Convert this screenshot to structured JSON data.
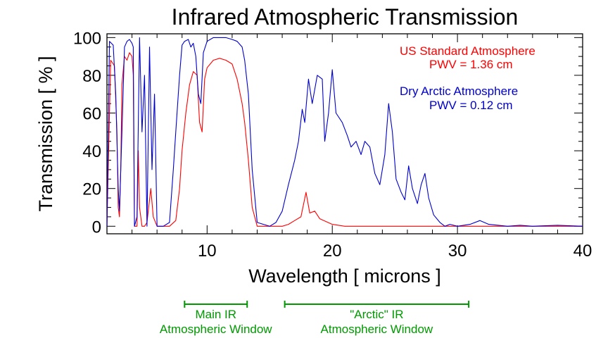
{
  "chart_data": {
    "type": "line",
    "title": "Infrared Atmospheric Transmission",
    "xlabel": "Wavelength [ microns ]",
    "ylabel": "Transmission [ % ]",
    "xlim": [
      2,
      40
    ],
    "ylim": [
      -4,
      102
    ],
    "xticks": [
      10,
      20,
      30,
      40
    ],
    "yticks": [
      0,
      20,
      40,
      60,
      80,
      100
    ],
    "grid": false,
    "legend_position": "top-right",
    "series": [
      {
        "name": "US Standard Atmosphere",
        "subtitle": "PWV = 1.36 cm",
        "color": "#ff0000",
        "points": [
          [
            2.0,
            0
          ],
          [
            2.3,
            88
          ],
          [
            2.6,
            85
          ],
          [
            2.8,
            50
          ],
          [
            2.9,
            10
          ],
          [
            3.0,
            5
          ],
          [
            3.1,
            30
          ],
          [
            3.2,
            75
          ],
          [
            3.4,
            90
          ],
          [
            3.6,
            88
          ],
          [
            3.8,
            92
          ],
          [
            4.0,
            90
          ],
          [
            4.1,
            80
          ],
          [
            4.2,
            0
          ],
          [
            4.4,
            0
          ],
          [
            4.5,
            40
          ],
          [
            4.6,
            10
          ],
          [
            4.8,
            0
          ],
          [
            5.0,
            0
          ],
          [
            5.2,
            2
          ],
          [
            5.5,
            20
          ],
          [
            5.7,
            5
          ],
          [
            6.0,
            0
          ],
          [
            7.0,
            0
          ],
          [
            7.5,
            3
          ],
          [
            7.8,
            20
          ],
          [
            8.0,
            40
          ],
          [
            8.3,
            60
          ],
          [
            8.6,
            75
          ],
          [
            8.9,
            82
          ],
          [
            9.2,
            80
          ],
          [
            9.4,
            55
          ],
          [
            9.6,
            50
          ],
          [
            9.8,
            78
          ],
          [
            10.0,
            84
          ],
          [
            10.5,
            88
          ],
          [
            11.0,
            89
          ],
          [
            11.5,
            88
          ],
          [
            12.0,
            86
          ],
          [
            12.4,
            78
          ],
          [
            12.8,
            65
          ],
          [
            13.0,
            55
          ],
          [
            13.3,
            35
          ],
          [
            13.6,
            10
          ],
          [
            14.0,
            0
          ],
          [
            16.0,
            0
          ],
          [
            16.5,
            1
          ],
          [
            17.0,
            3
          ],
          [
            17.5,
            5
          ],
          [
            17.9,
            18
          ],
          [
            18.2,
            7
          ],
          [
            18.6,
            8
          ],
          [
            19.0,
            4
          ],
          [
            20.0,
            1
          ],
          [
            21.0,
            0
          ],
          [
            40.0,
            0
          ]
        ]
      },
      {
        "name": "Dry Arctic Atmosphere",
        "subtitle": "PWV = 0.12 cm",
        "color": "#0000cc",
        "points": [
          [
            2.0,
            0
          ],
          [
            2.2,
            98
          ],
          [
            2.5,
            96
          ],
          [
            2.7,
            70
          ],
          [
            2.9,
            20
          ],
          [
            3.0,
            8
          ],
          [
            3.2,
            50
          ],
          [
            3.4,
            95
          ],
          [
            3.6,
            98
          ],
          [
            3.8,
            99
          ],
          [
            4.0,
            97
          ],
          [
            4.1,
            95
          ],
          [
            4.2,
            0
          ],
          [
            4.4,
            5
          ],
          [
            4.6,
            100
          ],
          [
            4.8,
            50
          ],
          [
            5.0,
            80
          ],
          [
            5.2,
            0
          ],
          [
            5.4,
            95
          ],
          [
            5.6,
            30
          ],
          [
            5.8,
            70
          ],
          [
            6.0,
            0
          ],
          [
            6.5,
            0
          ],
          [
            7.0,
            2
          ],
          [
            7.3,
            30
          ],
          [
            7.5,
            50
          ],
          [
            7.8,
            80
          ],
          [
            8.0,
            96
          ],
          [
            8.2,
            98
          ],
          [
            8.5,
            99
          ],
          [
            8.7,
            95
          ],
          [
            8.9,
            97
          ],
          [
            9.1,
            90
          ],
          [
            9.3,
            70
          ],
          [
            9.5,
            65
          ],
          [
            9.7,
            92
          ],
          [
            10.0,
            98
          ],
          [
            10.5,
            100
          ],
          [
            11.0,
            100
          ],
          [
            11.5,
            100
          ],
          [
            12.0,
            99
          ],
          [
            12.4,
            98
          ],
          [
            12.8,
            95
          ],
          [
            13.0,
            88
          ],
          [
            13.3,
            70
          ],
          [
            13.6,
            30
          ],
          [
            14.0,
            2
          ],
          [
            15.0,
            0
          ],
          [
            15.5,
            2
          ],
          [
            16.0,
            8
          ],
          [
            16.5,
            22
          ],
          [
            17.0,
            35
          ],
          [
            17.3,
            45
          ],
          [
            17.6,
            62
          ],
          [
            17.8,
            55
          ],
          [
            18.1,
            78
          ],
          [
            18.4,
            65
          ],
          [
            18.8,
            80
          ],
          [
            19.2,
            78
          ],
          [
            19.4,
            45
          ],
          [
            19.7,
            60
          ],
          [
            20.0,
            83
          ],
          [
            20.3,
            60
          ],
          [
            20.8,
            55
          ],
          [
            21.2,
            48
          ],
          [
            21.5,
            42
          ],
          [
            21.9,
            45
          ],
          [
            22.3,
            38
          ],
          [
            22.6,
            45
          ],
          [
            23.0,
            42
          ],
          [
            23.4,
            28
          ],
          [
            23.8,
            22
          ],
          [
            24.2,
            38
          ],
          [
            24.5,
            65
          ],
          [
            24.8,
            50
          ],
          [
            25.1,
            25
          ],
          [
            25.5,
            18
          ],
          [
            25.8,
            14
          ],
          [
            26.1,
            32
          ],
          [
            26.4,
            20
          ],
          [
            26.8,
            12
          ],
          [
            27.1,
            22
          ],
          [
            27.4,
            28
          ],
          [
            27.7,
            15
          ],
          [
            28.1,
            6
          ],
          [
            28.6,
            2
          ],
          [
            29.0,
            0
          ],
          [
            29.4,
            1
          ],
          [
            30.0,
            0
          ],
          [
            31.0,
            1
          ],
          [
            31.8,
            3
          ],
          [
            32.5,
            1
          ],
          [
            34.0,
            0
          ],
          [
            35.0,
            0.5
          ],
          [
            36.0,
            0
          ],
          [
            38.0,
            0.5
          ],
          [
            40.0,
            0
          ]
        ]
      }
    ],
    "annotations": [
      {
        "line1": "Main IR",
        "line2": "Atmospheric Window",
        "x_start": 8.2,
        "x_end": 13.2,
        "color": "#009900"
      },
      {
        "line1": "\"Arctic\" IR",
        "line2": "Atmospheric Window",
        "x_start": 16.2,
        "x_end": 30.9,
        "color": "#009900"
      }
    ]
  }
}
